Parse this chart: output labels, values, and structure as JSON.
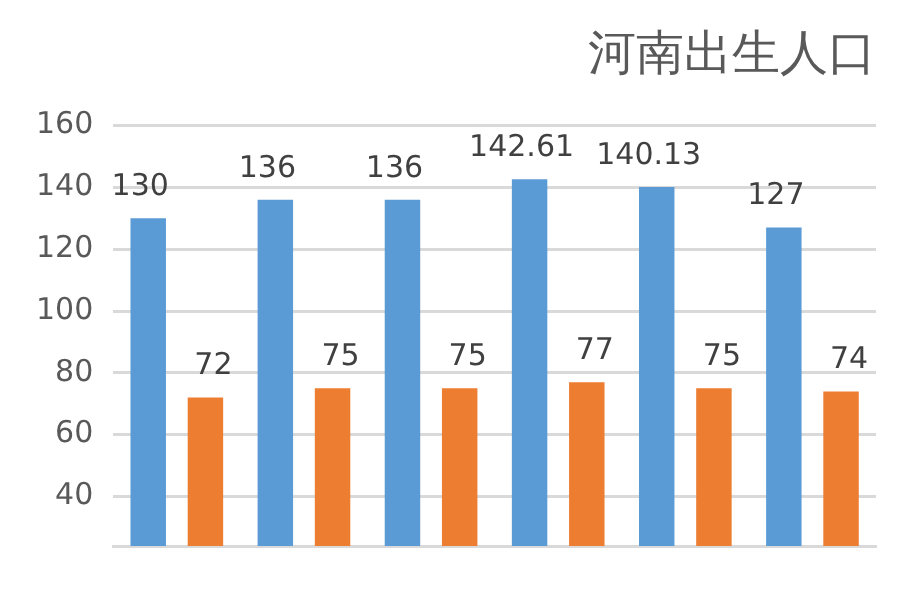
{
  "chart_data": {
    "type": "bar",
    "title": "河南出生人口",
    "categories": [
      null,
      null,
      null,
      null,
      null,
      null
    ],
    "series": [
      {
        "color": "#5b9bd5",
        "values": [
          130,
          136,
          136,
          142.61,
          140.13,
          127
        ]
      },
      {
        "color": "#ed7d31",
        "values": [
          72,
          75,
          75,
          77,
          75,
          74
        ]
      }
    ],
    "ylim": [
      24,
      160
    ],
    "yticks": [
      40,
      60,
      80,
      100,
      120,
      140,
      160
    ],
    "grid": "y",
    "data_labels": true,
    "legend": false,
    "tick_labels": "y"
  }
}
